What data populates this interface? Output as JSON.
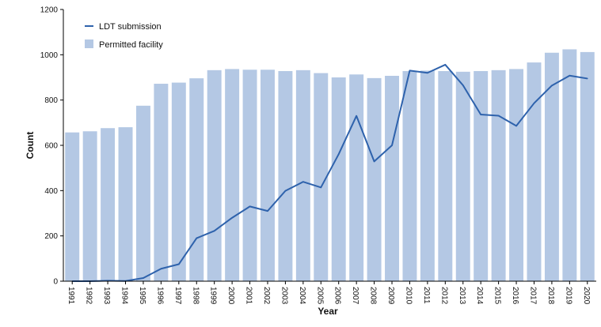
{
  "chart_data": {
    "type": "bar",
    "title": "",
    "xlabel": "Year",
    "ylabel": "Count",
    "ylim": [
      0,
      1200
    ],
    "yticks": [
      0,
      200,
      400,
      600,
      800,
      1000,
      1200
    ],
    "grid": false,
    "legend_position": "top-left",
    "categories": [
      "1991",
      "1992",
      "1993",
      "1994",
      "1995",
      "1996",
      "1997",
      "1998",
      "1999",
      "2000",
      "2001",
      "2002",
      "2003",
      "2004",
      "2005",
      "2006",
      "2007",
      "2008",
      "2009",
      "2010",
      "2011",
      "2012",
      "2013",
      "2014",
      "2015",
      "2016",
      "2017",
      "2018",
      "2019",
      "2020"
    ],
    "series": [
      {
        "name": "Permitted facility",
        "type": "bar",
        "color": "#b4c8e4",
        "values": [
          657,
          662,
          676,
          680,
          775,
          872,
          877,
          896,
          932,
          937,
          934,
          934,
          928,
          932,
          919,
          900,
          913,
          897,
          907,
          928,
          930,
          928,
          925,
          928,
          932,
          937,
          966,
          1009,
          1024,
          1012
        ]
      },
      {
        "name": "LDT submission",
        "type": "line",
        "color": "#2e62ac",
        "values": [
          0,
          0,
          2,
          1,
          14,
          55,
          75,
          190,
          222,
          280,
          330,
          310,
          399,
          439,
          414,
          561,
          730,
          529,
          600,
          930,
          920,
          956,
          865,
          736,
          731,
          686,
          786,
          864,
          908,
          895
        ]
      }
    ]
  }
}
